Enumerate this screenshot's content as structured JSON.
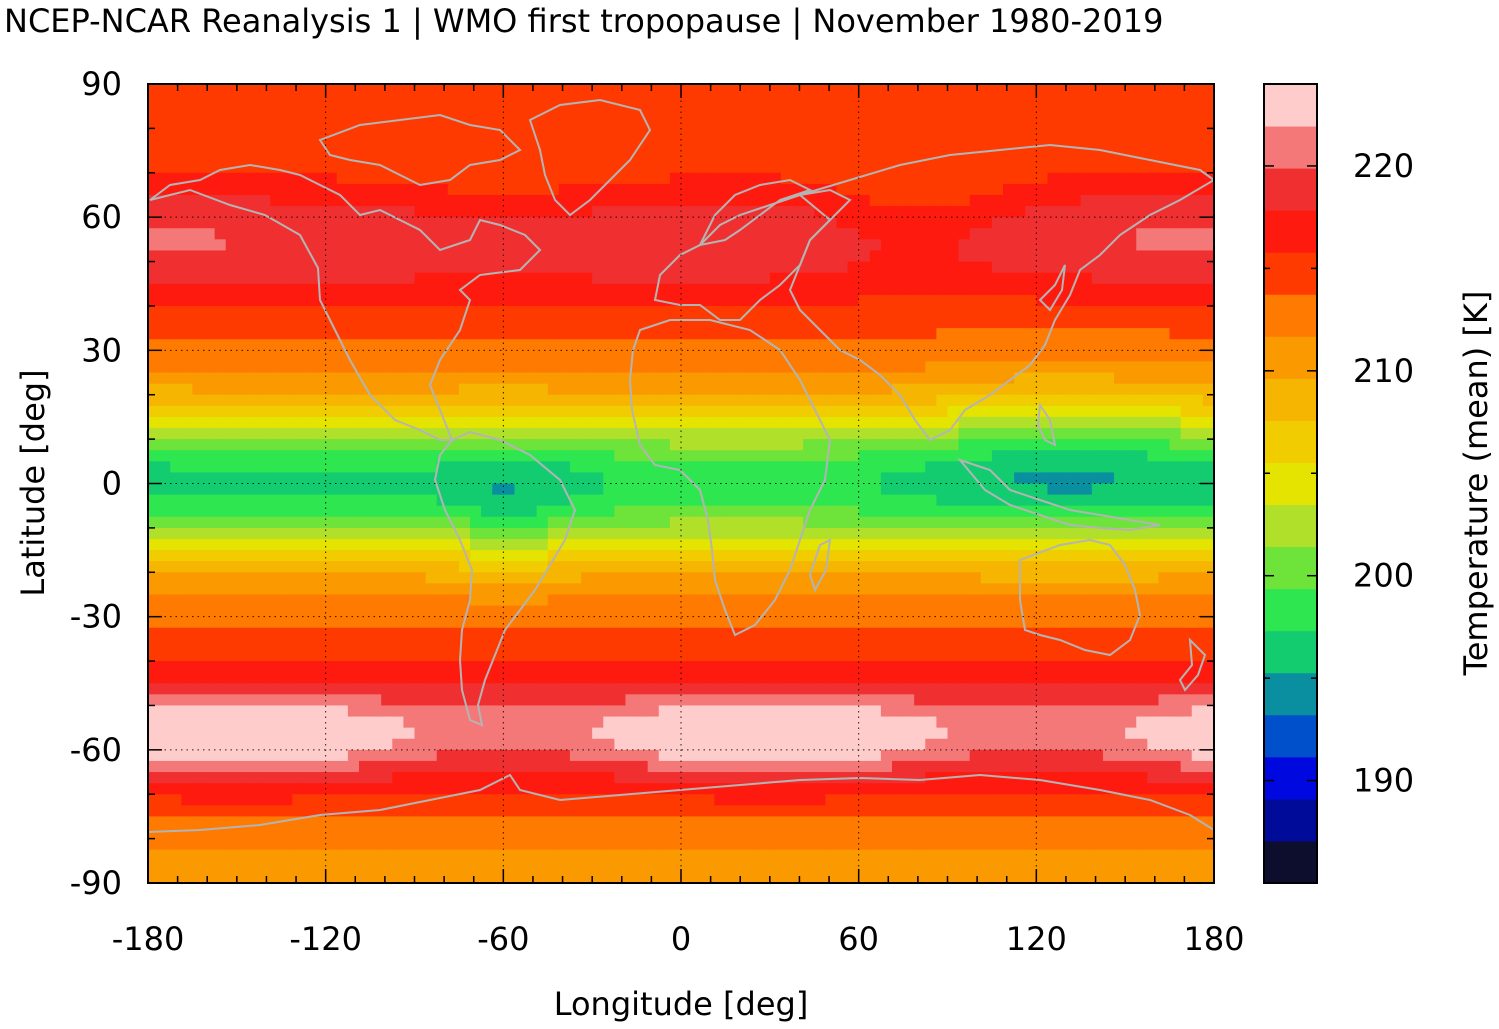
{
  "title": "NCEP-NCAR Reanalysis 1 | WMO first tropopause | November 1980-2019",
  "chart_data": {
    "type": "heatmap",
    "title": "NCEP-NCAR Reanalysis 1 | WMO first tropopause | November 1980-2019",
    "xlabel": "Longitude [deg]",
    "ylabel": "Latitude [deg]",
    "colorbar_label": "Temperature (mean) [K]",
    "xlim": [
      -180,
      180
    ],
    "ylim": [
      -90,
      90
    ],
    "x_ticks": [
      "-180",
      "-120",
      "-60",
      "0",
      "60",
      "120",
      "180"
    ],
    "y_ticks": [
      "90",
      "60",
      "30",
      "0",
      "-30",
      "-60",
      "-90"
    ],
    "colorbar_ticks": [
      "220",
      "210",
      "200",
      "190"
    ],
    "colorbar_range": [
      185,
      224
    ],
    "colorbar_colors": [
      "#0d0d2e",
      "#000b99",
      "#0008e0",
      "#0050cc",
      "#0a8fa0",
      "#13cc70",
      "#2ee650",
      "#6ee33a",
      "#b0e02a",
      "#e5e300",
      "#f0cc00",
      "#f5b500",
      "#fa9a00",
      "#ff7a00",
      "#ff3a00",
      "#ff1a10",
      "#f03030",
      "#f57878",
      "#ffcccc"
    ],
    "grid": true,
    "coastlines_color": "#b4b4b4"
  }
}
